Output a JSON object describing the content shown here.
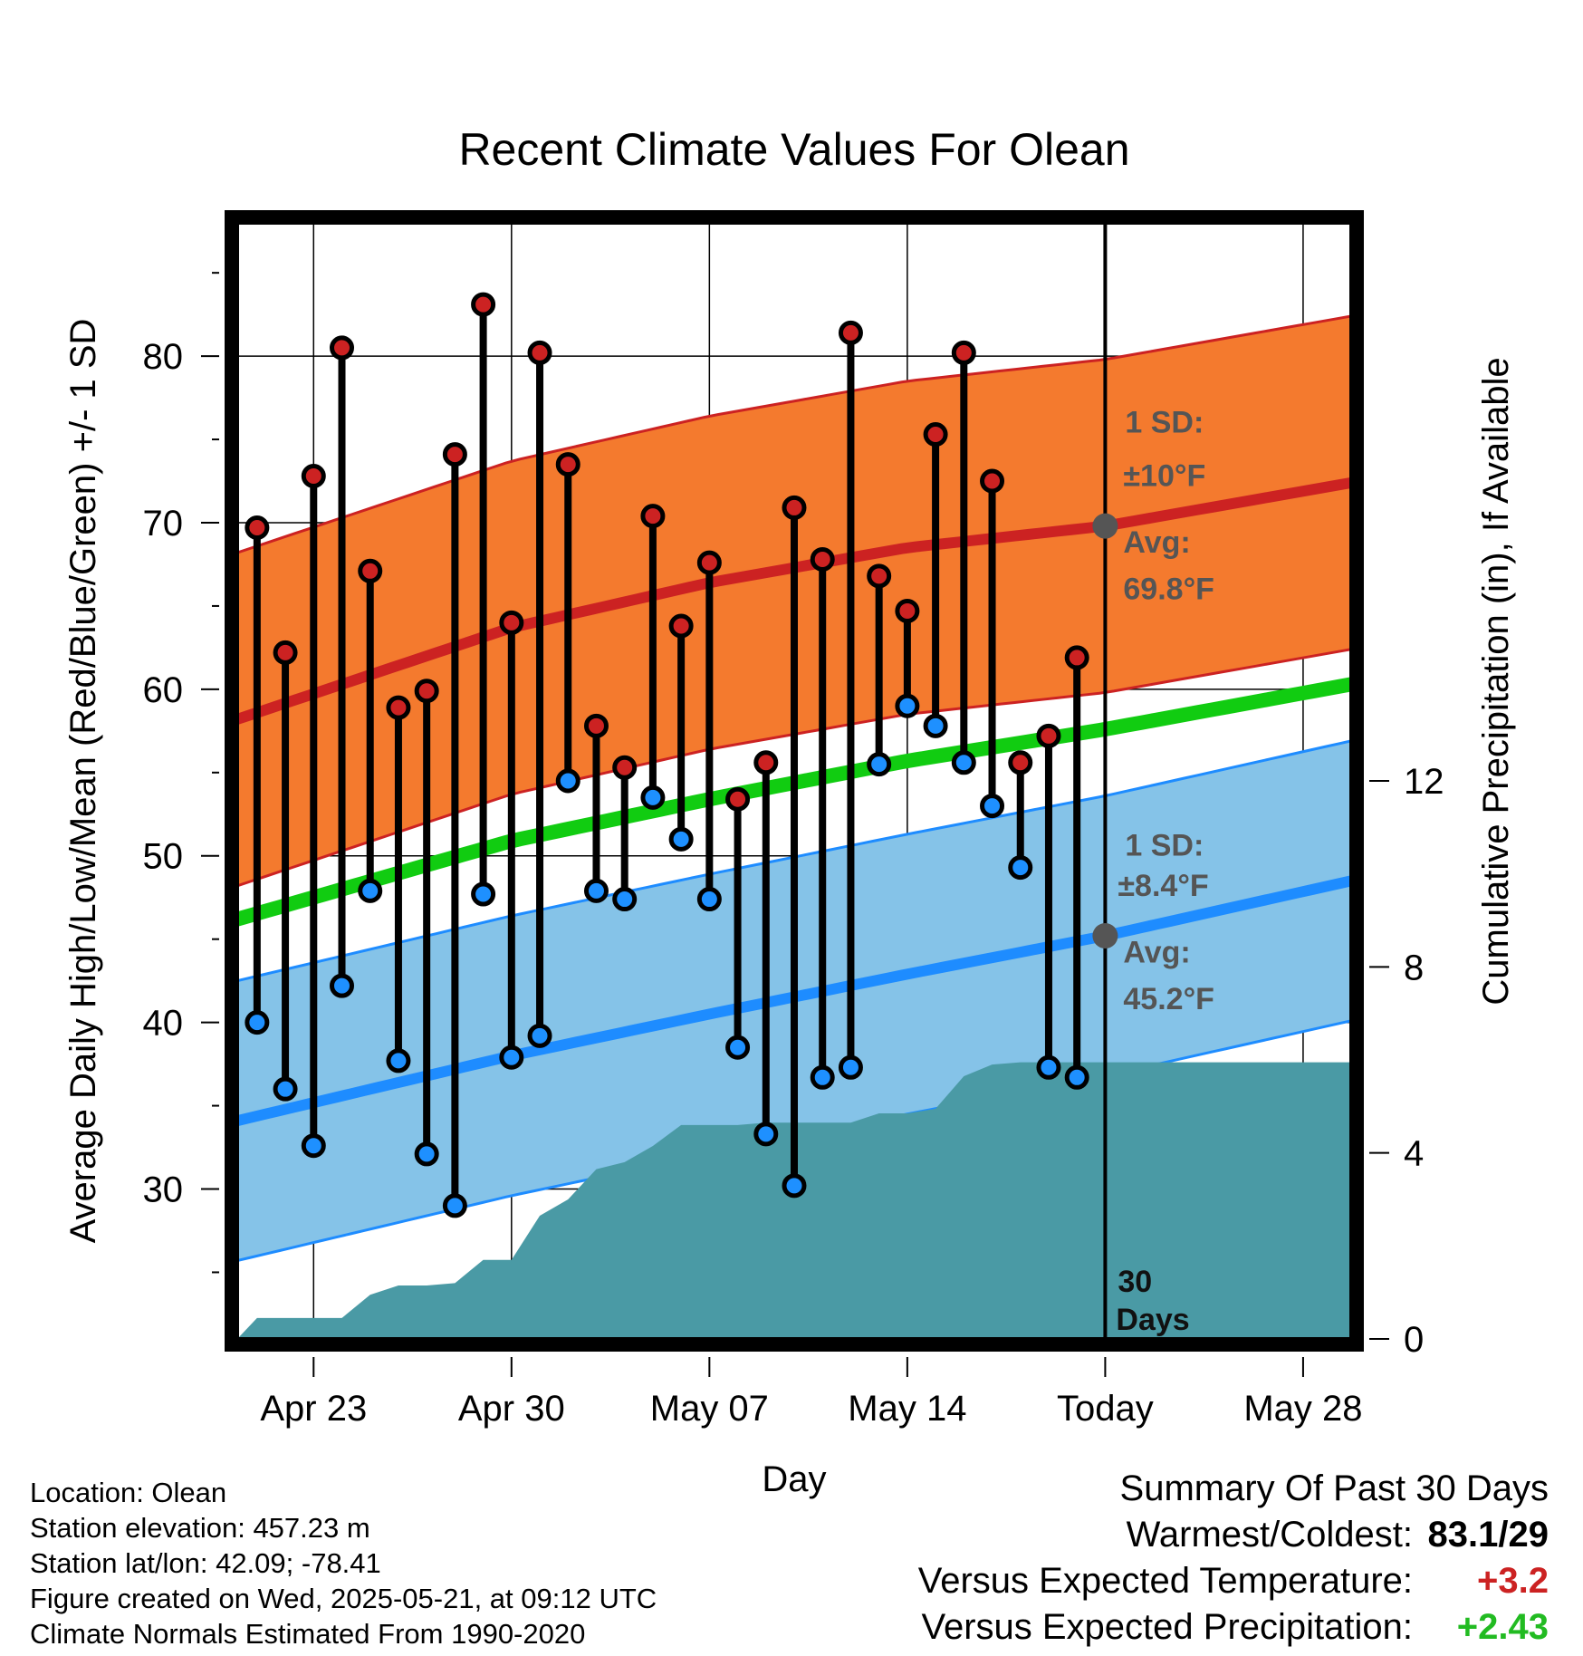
{
  "chart_data": {
    "type": "line",
    "title": "Recent Climate Values For Olean",
    "xlabel": "Day",
    "ylabel": "Average Daily High/Low/Mean (Red/Blue/Green) +/- 1 SD",
    "y2label": "Cumulative Precipitation (in), If Available",
    "x_ticks": [
      "Apr 23",
      "Apr 30",
      "May 07",
      "May 14",
      "Today",
      "May 28"
    ],
    "x_tick_days": [
      2,
      9,
      16,
      23,
      30,
      37
    ],
    "xlim": [
      -0.7,
      38.7
    ],
    "y_ticks": [
      30,
      40,
      50,
      60,
      70,
      80
    ],
    "ylim": [
      21,
      88
    ],
    "y2_ticks": [
      0,
      4,
      8,
      12
    ],
    "y2lim": [
      0,
      24
    ],
    "grid": true,
    "today_marker": {
      "day": 30,
      "label_line1": "30",
      "label_line2": "Days"
    },
    "days": [
      0,
      1,
      2,
      3,
      4,
      5,
      6,
      7,
      8,
      9,
      10,
      11,
      12,
      13,
      14,
      15,
      16,
      17,
      18,
      19,
      20,
      21,
      22,
      23,
      24,
      25,
      26,
      27,
      28,
      29
    ],
    "highs": [
      69.7,
      62.2,
      72.8,
      80.5,
      67.1,
      58.9,
      59.9,
      74.1,
      83.1,
      64.0,
      80.2,
      73.5,
      57.8,
      55.3,
      70.4,
      63.8,
      67.6,
      53.4,
      55.6,
      70.9,
      67.8,
      81.4,
      66.8,
      64.7,
      75.3,
      80.2,
      72.5,
      55.6,
      57.2,
      61.9
    ],
    "lows": [
      40.0,
      36.0,
      32.6,
      42.2,
      47.9,
      37.7,
      32.1,
      29.0,
      47.7,
      37.9,
      39.2,
      54.5,
      47.9,
      47.4,
      53.5,
      51.0,
      47.4,
      38.5,
      33.3,
      30.2,
      36.7,
      37.3,
      55.5,
      59.0,
      57.8,
      55.6,
      53.0,
      49.3,
      37.3,
      36.7
    ],
    "normal_high": {
      "name": "Avg: 69.8°F",
      "days": [
        -0.7,
        9,
        16,
        23,
        30,
        38.7
      ],
      "values": [
        58.2,
        63.7,
        66.4,
        68.5,
        69.8,
        72.4
      ],
      "sd": 10,
      "sd_label_line1": "1 SD:",
      "sd_label_line2": "±10°F",
      "avg_label_line1": "Avg:",
      "avg_label_line2": "69.8°F",
      "color": "#cc2222",
      "band_color": "#f47a2e"
    },
    "normal_low": {
      "days": [
        -0.7,
        9,
        16,
        23,
        30,
        38.7
      ],
      "values": [
        34.1,
        38.0,
        40.5,
        42.9,
        45.2,
        48.5
      ],
      "sd": 8.4,
      "sd_label_line1": "1 SD:",
      "sd_label_line2": "±8.4°F",
      "avg_label_line1": "Avg:",
      "avg_label_line2": "45.2°F",
      "color": "#1e8cff",
      "band_color": "#85c3e8"
    },
    "normal_mean": {
      "days": [
        -0.7,
        9,
        16,
        23,
        30,
        38.7
      ],
      "values": [
        46.2,
        50.9,
        53.4,
        55.7,
        57.6,
        60.3
      ],
      "color": "#11cc11"
    },
    "precipitation": {
      "color": "#4a9aa5",
      "days": [
        -0.7,
        0,
        3,
        4,
        5,
        6,
        7,
        8,
        9,
        10,
        11,
        12,
        13,
        14,
        15,
        16,
        17,
        18,
        19,
        20,
        21,
        22,
        23,
        24,
        25,
        26,
        27,
        28,
        29,
        38.7
      ],
      "values": [
        0,
        0.45,
        0.45,
        0.95,
        1.15,
        1.15,
        1.2,
        1.7,
        1.7,
        2.65,
        3.0,
        3.65,
        3.8,
        4.15,
        4.6,
        4.6,
        4.6,
        4.65,
        4.65,
        4.65,
        4.65,
        4.85,
        4.85,
        4.95,
        5.65,
        5.9,
        5.95,
        5.95,
        5.95,
        5.95
      ]
    }
  },
  "footer": {
    "location": "Location: Olean",
    "elevation": "Station elevation: 457.23 m",
    "latlon": "Station lat/lon: 42.09; -78.41",
    "created": "Figure created on Wed, 2025-05-21, at 09:12 UTC",
    "normals": "Climate Normals Estimated From 1990-2020"
  },
  "summary": {
    "title": "Summary Of Past 30 Days",
    "warmest_label": "Warmest/Coldest:",
    "warmest_value": "83.1",
    "coldest_value": "/29",
    "temp_label": "Versus Expected Temperature:",
    "temp_value": "+3.2",
    "temp_color": "#cc2222",
    "precip_label": "Versus Expected Precipitation:",
    "precip_value": "+2.43",
    "precip_color": "#22bb22"
  }
}
